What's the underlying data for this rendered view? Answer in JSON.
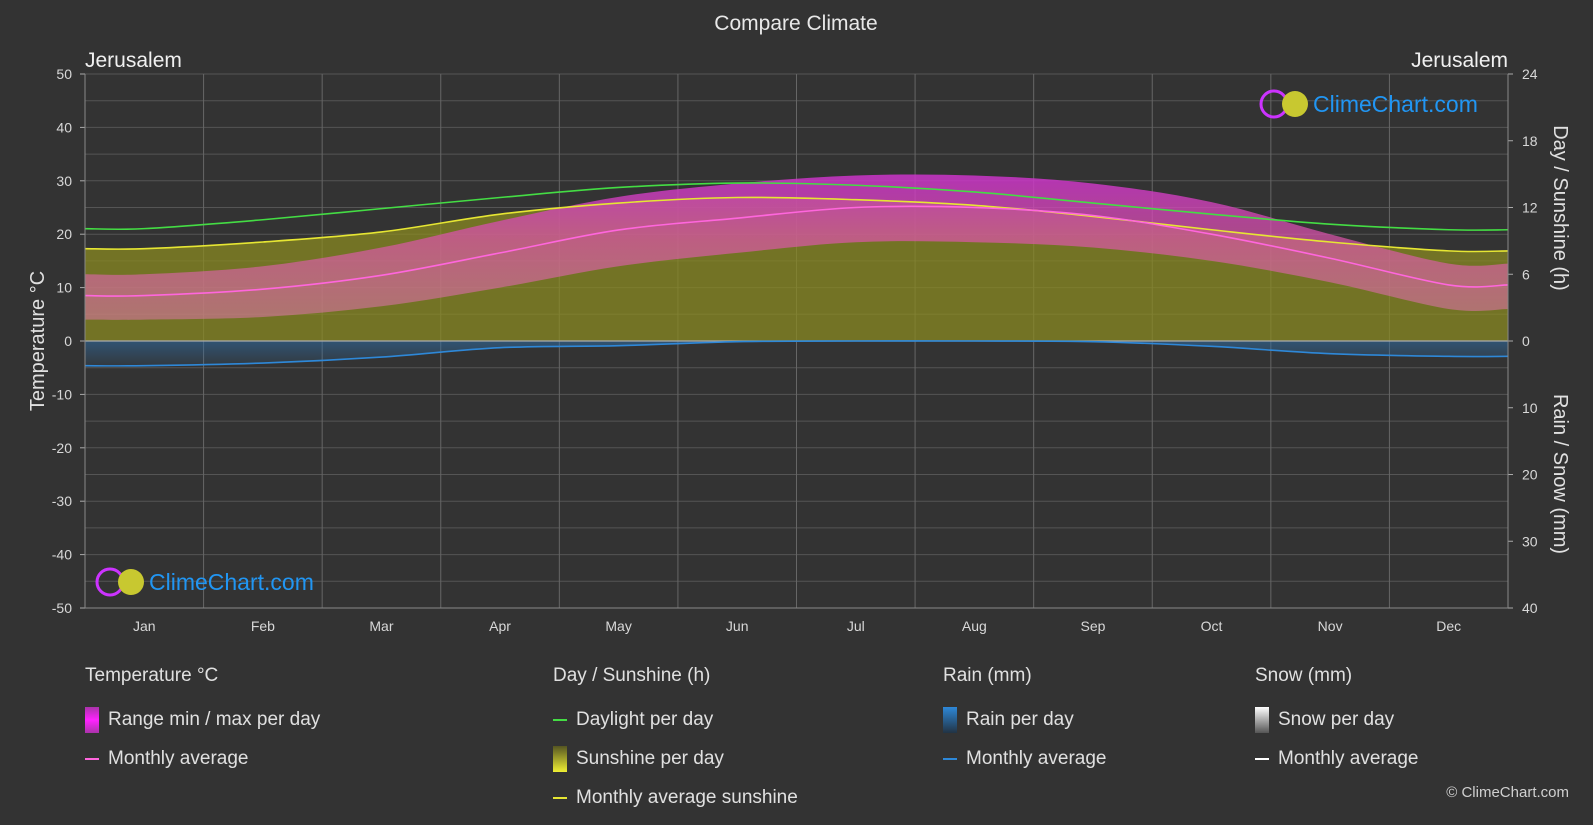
{
  "chart_data": {
    "type": "area",
    "title": "Compare Climate",
    "location_left": "Jerusalem",
    "location_right": "Jerusalem",
    "categories": [
      "Jan",
      "Feb",
      "Mar",
      "Apr",
      "May",
      "Jun",
      "Jul",
      "Aug",
      "Sep",
      "Oct",
      "Nov",
      "Dec"
    ],
    "y_left": {
      "label": "Temperature °C",
      "range": [
        -50,
        50
      ],
      "ticks": [
        "50",
        "40",
        "30",
        "20",
        "10",
        "0",
        "-10",
        "-20",
        "-30",
        "-40",
        "-50"
      ]
    },
    "y_right_top": {
      "label": "Day / Sunshine (h)",
      "range": [
        0,
        24
      ],
      "ticks": [
        "24",
        "18",
        "12",
        "6",
        "0"
      ]
    },
    "y_right_bottom": {
      "label": "Rain / Snow (mm)",
      "range": [
        0,
        40
      ],
      "ticks": [
        "10",
        "20",
        "30",
        "40"
      ]
    },
    "series": [
      {
        "name": "Daylight per day",
        "unit": "h",
        "values": [
          10.1,
          10.9,
          11.9,
          12.9,
          13.8,
          14.2,
          14.0,
          13.4,
          12.4,
          11.4,
          10.5,
          10.0
        ]
      },
      {
        "name": "Monthly average sunshine",
        "unit": "h",
        "values": [
          8.3,
          8.9,
          9.8,
          11.4,
          12.4,
          12.9,
          12.7,
          12.2,
          11.2,
          10.0,
          8.9,
          8.1
        ]
      },
      {
        "name": "Sunshine per day",
        "unit": "h",
        "values": [
          8.3,
          8.9,
          9.8,
          11.4,
          12.4,
          12.9,
          12.7,
          12.2,
          11.2,
          10.0,
          8.9,
          8.1
        ]
      },
      {
        "name": "Temperature monthly average",
        "unit": "°C",
        "values": [
          8.5,
          9.7,
          12.3,
          16.5,
          20.8,
          23.0,
          25.0,
          25.0,
          23.5,
          20.0,
          15.5,
          10.5
        ]
      },
      {
        "name": "Range max per day",
        "unit": "°C",
        "values": [
          12.5,
          14.0,
          17.5,
          22.5,
          27.0,
          29.5,
          31.0,
          31.0,
          29.5,
          26.0,
          20.0,
          14.5
        ]
      },
      {
        "name": "Range min per day",
        "unit": "°C",
        "values": [
          4.0,
          4.5,
          6.5,
          10.0,
          14.0,
          16.5,
          18.5,
          18.5,
          17.5,
          15.0,
          11.0,
          6.0
        ]
      },
      {
        "name": "Rain monthly average",
        "unit": "mm",
        "values": [
          3.7,
          3.3,
          2.4,
          1.0,
          0.7,
          0.1,
          0.0,
          0.0,
          0.1,
          0.8,
          1.9,
          2.3
        ]
      },
      {
        "name": "Snow monthly average",
        "unit": "mm",
        "values": [
          0,
          0,
          0,
          0,
          0,
          0,
          0,
          0,
          0,
          0,
          0,
          0
        ]
      }
    ],
    "grid": true,
    "colors": {
      "daylight": "#44dd44",
      "sunshine_line": "#e6e633",
      "sunshine_fill": "#8a8a22",
      "temp_avg": "#ff66dd",
      "temp_range": "#dd44bb",
      "rain": "#2e88d8",
      "snow": "#ffffff",
      "brand": "#2196f3"
    }
  },
  "brand": {
    "name": "ClimeChart.com",
    "copyright": "© ClimeChart.com"
  },
  "legend": {
    "temperature": {
      "title": "Temperature °C",
      "range": "Range min / max per day",
      "avg": "Monthly average"
    },
    "sunshine": {
      "title": "Day / Sunshine (h)",
      "daylight": "Daylight per day",
      "sunshine": "Sunshine per day",
      "avg": "Monthly average sunshine"
    },
    "rain": {
      "title": "Rain (mm)",
      "per_day": "Rain per day",
      "avg": "Monthly average"
    },
    "snow": {
      "title": "Snow (mm)",
      "per_day": "Snow per day",
      "avg": "Monthly average"
    }
  }
}
